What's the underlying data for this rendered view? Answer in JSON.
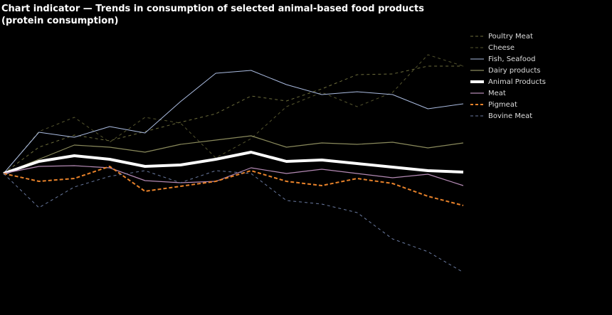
{
  "chart_data": {
    "type": "line",
    "title": "Chart indicator — Trends in consumption of selected animal-based food products (protein consumption)",
    "categories": [
      null,
      null,
      null,
      null,
      null,
      null,
      null,
      null,
      null,
      null,
      null,
      null,
      null,
      null
    ],
    "ylim": [
      0,
      200
    ],
    "legend": "top-right",
    "series": [
      {
        "name": "Poultry Meat",
        "color": "#6e6e3c",
        "dashed": true,
        "width": 1,
        "values": [
          100,
          118.5,
          127,
          123,
          129.5,
          136,
          142,
          154.5,
          151,
          159.5,
          169.5,
          170,
          175.5,
          175.5
        ]
      },
      {
        "name": "Cheese",
        "color": "#55552e",
        "dashed": true,
        "width": 1,
        "values": [
          100,
          129.5,
          139.5,
          122,
          139.5,
          135.5,
          111,
          124.5,
          147,
          157,
          147,
          157,
          183.5,
          175.5
        ]
      },
      {
        "name": "Fish, Seafood",
        "color": "#aabbe0",
        "dashed": false,
        "width": 1,
        "values": [
          100,
          129,
          125.5,
          133,
          128.5,
          150.5,
          170.5,
          172.5,
          162.5,
          155.5,
          157.5,
          155.5,
          145.5,
          149
        ]
      },
      {
        "name": "Dairy products",
        "color": "#8a8a5c",
        "dashed": false,
        "width": 1.2,
        "values": [
          100,
          110,
          120,
          118.5,
          115,
          120.5,
          123.5,
          126.5,
          118.5,
          121.5,
          120.5,
          122,
          118,
          121.5
        ]
      },
      {
        "name": "Animal Products",
        "color": "#ffffff",
        "dashed": false,
        "width": 4,
        "values": [
          100,
          108.5,
          112.5,
          110,
          105,
          106,
          110,
          115,
          108.5,
          109.5,
          107,
          104.5,
          102,
          101
        ]
      },
      {
        "name": "Meat",
        "color": "#b48ab4",
        "dashed": false,
        "width": 1.2,
        "values": [
          100,
          105,
          105.5,
          104,
          95,
          93.5,
          94.5,
          104,
          100,
          103,
          100,
          97,
          99.5,
          91.5
        ]
      },
      {
        "name": "Pigmeat",
        "color": "#e8822a",
        "dashed": true,
        "width": 2,
        "values": [
          100,
          94.5,
          96.5,
          105,
          87.5,
          91,
          94.5,
          102,
          94.5,
          91.5,
          96.5,
          93,
          84,
          77.5
        ]
      },
      {
        "name": "Bovine Meat",
        "color": "#6a7aa0",
        "dashed": true,
        "width": 1,
        "values": [
          100,
          76,
          90.5,
          98,
          102,
          93.5,
          102,
          100,
          81,
          78.5,
          72.5,
          54,
          45,
          30.5
        ]
      }
    ]
  }
}
